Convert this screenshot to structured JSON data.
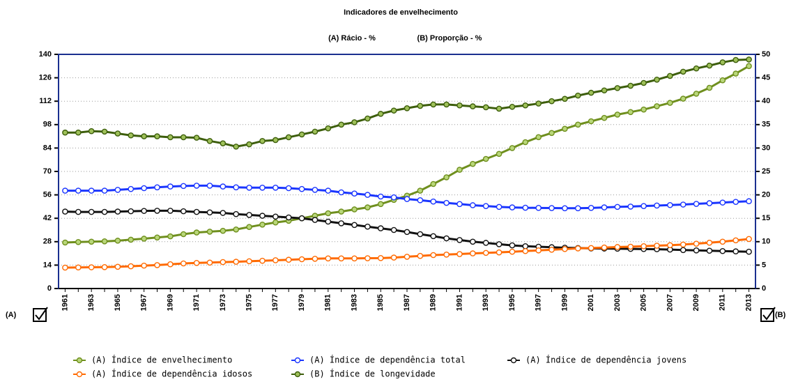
{
  "chart_data": {
    "type": "line",
    "title": "Indicadores de envelhecimento",
    "subtitle": [
      "(A) Rácio - %",
      "(B) Proporção - %"
    ],
    "axis_labels": {
      "y": "(A)",
      "y2": "(B)"
    },
    "categories": [
      "1961",
      null,
      "1963",
      null,
      "1965",
      null,
      "1967",
      null,
      "1969",
      null,
      "1971",
      null,
      "1973",
      null,
      "1975",
      null,
      "1977",
      null,
      "1979",
      null,
      "1981",
      null,
      "1983",
      null,
      "1985",
      null,
      "1987",
      null,
      "1989",
      null,
      "1991",
      null,
      "1993",
      null,
      "1995",
      null,
      "1997",
      null,
      "1999",
      null,
      "2001",
      null,
      "2003",
      null,
      "2005",
      null,
      "2007",
      null,
      "2009",
      null,
      "2011",
      null,
      "2013"
    ],
    "ylim": [
      0,
      140
    ],
    "yticks": [
      0,
      14,
      28,
      42,
      56,
      70,
      84,
      98,
      112,
      126,
      140
    ],
    "y2lim": [
      0,
      50
    ],
    "y2ticks": [
      0,
      5,
      10,
      15,
      20,
      25,
      30,
      35,
      40,
      45,
      50
    ],
    "grid": true,
    "series": [
      {
        "name": "(A) Índice de envelhecimento",
        "color": "#6f8f1e",
        "marker": "#b9d77a",
        "values": [
          27.5,
          27.8,
          28,
          28.2,
          28.6,
          29.2,
          29.8,
          30.5,
          31.2,
          32.5,
          33.5,
          34,
          34.5,
          35.3,
          36.8,
          38.2,
          39.5,
          40.5,
          42,
          43.5,
          45,
          46,
          47.3,
          48.5,
          50.5,
          53,
          55.5,
          58.5,
          62.5,
          66.5,
          71,
          74.5,
          77.5,
          80.5,
          84,
          87.5,
          90.5,
          93,
          95.5,
          98,
          100,
          102,
          104,
          105.5,
          107,
          109,
          111,
          113.5,
          116.5,
          120,
          124.5,
          128.5,
          133
        ]
      },
      {
        "name": "(A) Índice de dependência total",
        "color": "#1a35ff",
        "marker": "#ffffff",
        "values": [
          58.5,
          58.5,
          58.5,
          58.5,
          59,
          59.5,
          60,
          60.5,
          61,
          61.3,
          61.5,
          61.5,
          61,
          60.5,
          60.3,
          60.3,
          60.3,
          60,
          59.5,
          59,
          58.5,
          57.5,
          56.8,
          56,
          55,
          54.5,
          53.5,
          52.8,
          52,
          51.2,
          50.5,
          49.8,
          49.3,
          48.8,
          48.5,
          48.3,
          48.2,
          48.1,
          48,
          48,
          48.2,
          48.5,
          48.8,
          49,
          49.3,
          49.6,
          49.9,
          50.2,
          50.6,
          51,
          51.4,
          51.8,
          52.2
        ]
      },
      {
        "name": "(A) Índice de dependência jovens",
        "color": "#111111",
        "marker": "#ffffff",
        "values": [
          46,
          45.8,
          45.8,
          45.8,
          46,
          46.2,
          46.4,
          46.5,
          46.5,
          46.2,
          45.8,
          45.5,
          45.2,
          44.5,
          44,
          43.5,
          43,
          42.5,
          42,
          41,
          40,
          39,
          38,
          37,
          36,
          35,
          33.8,
          32.5,
          31.3,
          30,
          29,
          28,
          27.3,
          26.5,
          25.8,
          25.3,
          25,
          24.7,
          24.4,
          24.2,
          24,
          23.9,
          23.8,
          23.7,
          23.6,
          23.5,
          23.3,
          23,
          22.8,
          22.6,
          22.4,
          22.2,
          22
        ]
      },
      {
        "name": "(A) Índice de dependência idosos",
        "color": "#ff6a00",
        "marker": "#ffffff",
        "values": [
          12.5,
          12.6,
          12.7,
          12.8,
          13,
          13.3,
          13.7,
          14,
          14.5,
          15,
          15.3,
          15.5,
          15.8,
          16,
          16.3,
          16.6,
          16.9,
          17.2,
          17.5,
          17.8,
          18,
          18,
          18,
          18.1,
          18.2,
          18.5,
          19,
          19.5,
          20,
          20.3,
          20.6,
          21,
          21.3,
          21.6,
          22,
          22.4,
          22.8,
          23.2,
          23.6,
          24,
          24.2,
          24.5,
          24.8,
          25,
          25.3,
          25.6,
          25.9,
          26.3,
          26.8,
          27.4,
          28,
          28.8,
          29.6
        ]
      },
      {
        "name": "(B) Índice de longevidade",
        "color": "#3d5e0c",
        "marker": "#9fc15a",
        "axis": "y2",
        "values": [
          33.3,
          33.3,
          33.6,
          33.5,
          33.1,
          32.7,
          32.5,
          32.5,
          32.3,
          32.3,
          32.2,
          31.5,
          31,
          30.3,
          30.8,
          31.5,
          31.7,
          32.3,
          32.9,
          33.5,
          34.2,
          35,
          35.5,
          36.3,
          37.3,
          38,
          38.5,
          39,
          39.3,
          39.3,
          39.1,
          38.9,
          38.7,
          38.4,
          38.8,
          39.1,
          39.5,
          40,
          40.5,
          41.2,
          41.8,
          42.3,
          42.8,
          43.3,
          43.9,
          44.6,
          45.4,
          46.3,
          47,
          47.6,
          48.3,
          48.8,
          48.9
        ]
      }
    ]
  }
}
